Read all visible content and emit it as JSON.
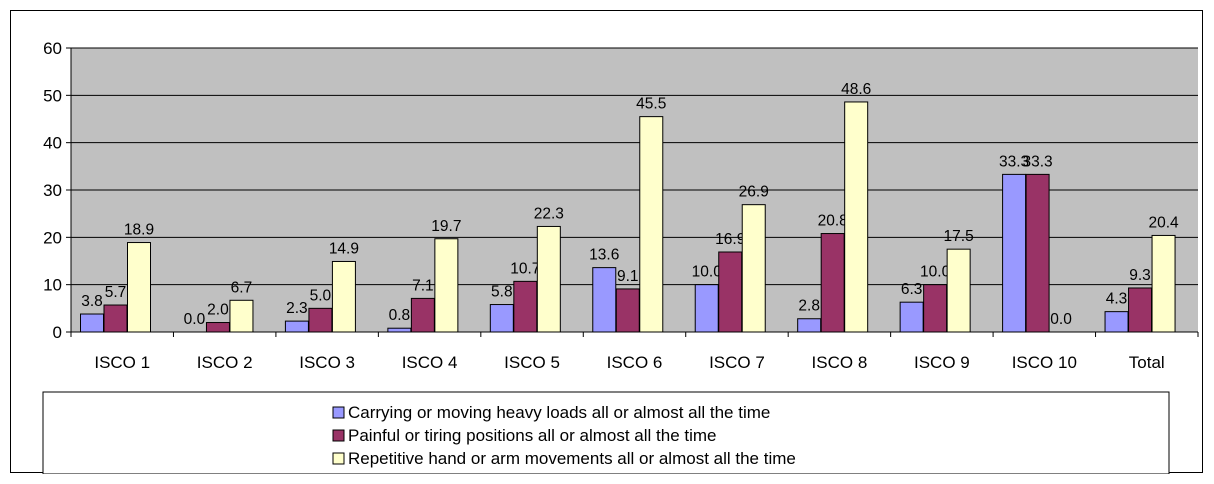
{
  "chart_data": {
    "type": "bar",
    "title": "",
    "xlabel": "",
    "ylabel": "",
    "ylim": [
      0,
      60
    ],
    "yticks": [
      0,
      10,
      20,
      30,
      40,
      50,
      60
    ],
    "grid": true,
    "legend_position": "bottom",
    "categories": [
      "ISCO 1",
      "ISCO 2",
      "ISCO 3",
      "ISCO 4",
      "ISCO 5",
      "ISCO 6",
      "ISCO 7",
      "ISCO 8",
      "ISCO 9",
      "ISCO 10",
      "Total"
    ],
    "series": [
      {
        "name": "Carrying or moving heavy loads all or almost all the time",
        "color": "#9999FF",
        "values": [
          3.8,
          0.0,
          2.3,
          0.8,
          5.8,
          13.6,
          10.0,
          2.8,
          6.3,
          33.3,
          4.3
        ],
        "labels": [
          "3.8",
          "0.0",
          "2.3",
          "0.8",
          "5.8",
          "13.6",
          "10.0",
          "2.8",
          "6.3",
          "33.3",
          "4.3"
        ]
      },
      {
        "name": "Painful or tiring positions all or almost all the time",
        "color": "#993366",
        "values": [
          5.7,
          2.0,
          5.0,
          7.1,
          10.7,
          9.1,
          16.9,
          20.8,
          10.0,
          33.3,
          9.3
        ],
        "labels": [
          "5.7",
          "2.0",
          "5.0",
          "7.1",
          "10.7",
          "9.1",
          "16.9",
          "20.8",
          "10.0",
          "33.3",
          "9.3"
        ]
      },
      {
        "name": "Repetitive hand or arm movements all or almost all the time",
        "color": "#FFFFCC",
        "values": [
          18.9,
          6.7,
          14.9,
          19.7,
          22.3,
          45.5,
          26.9,
          48.6,
          17.5,
          0.0,
          20.4
        ],
        "labels": [
          "18.9",
          "6.7",
          "14.9",
          "19.7",
          "22.3",
          "45.5",
          "26.9",
          "48.6",
          "17.5",
          "0.0",
          "20.4"
        ]
      }
    ]
  },
  "colors": {
    "plot_background": "#C0C0C0",
    "gridline": "#000000",
    "bar_outline": "#000000"
  }
}
